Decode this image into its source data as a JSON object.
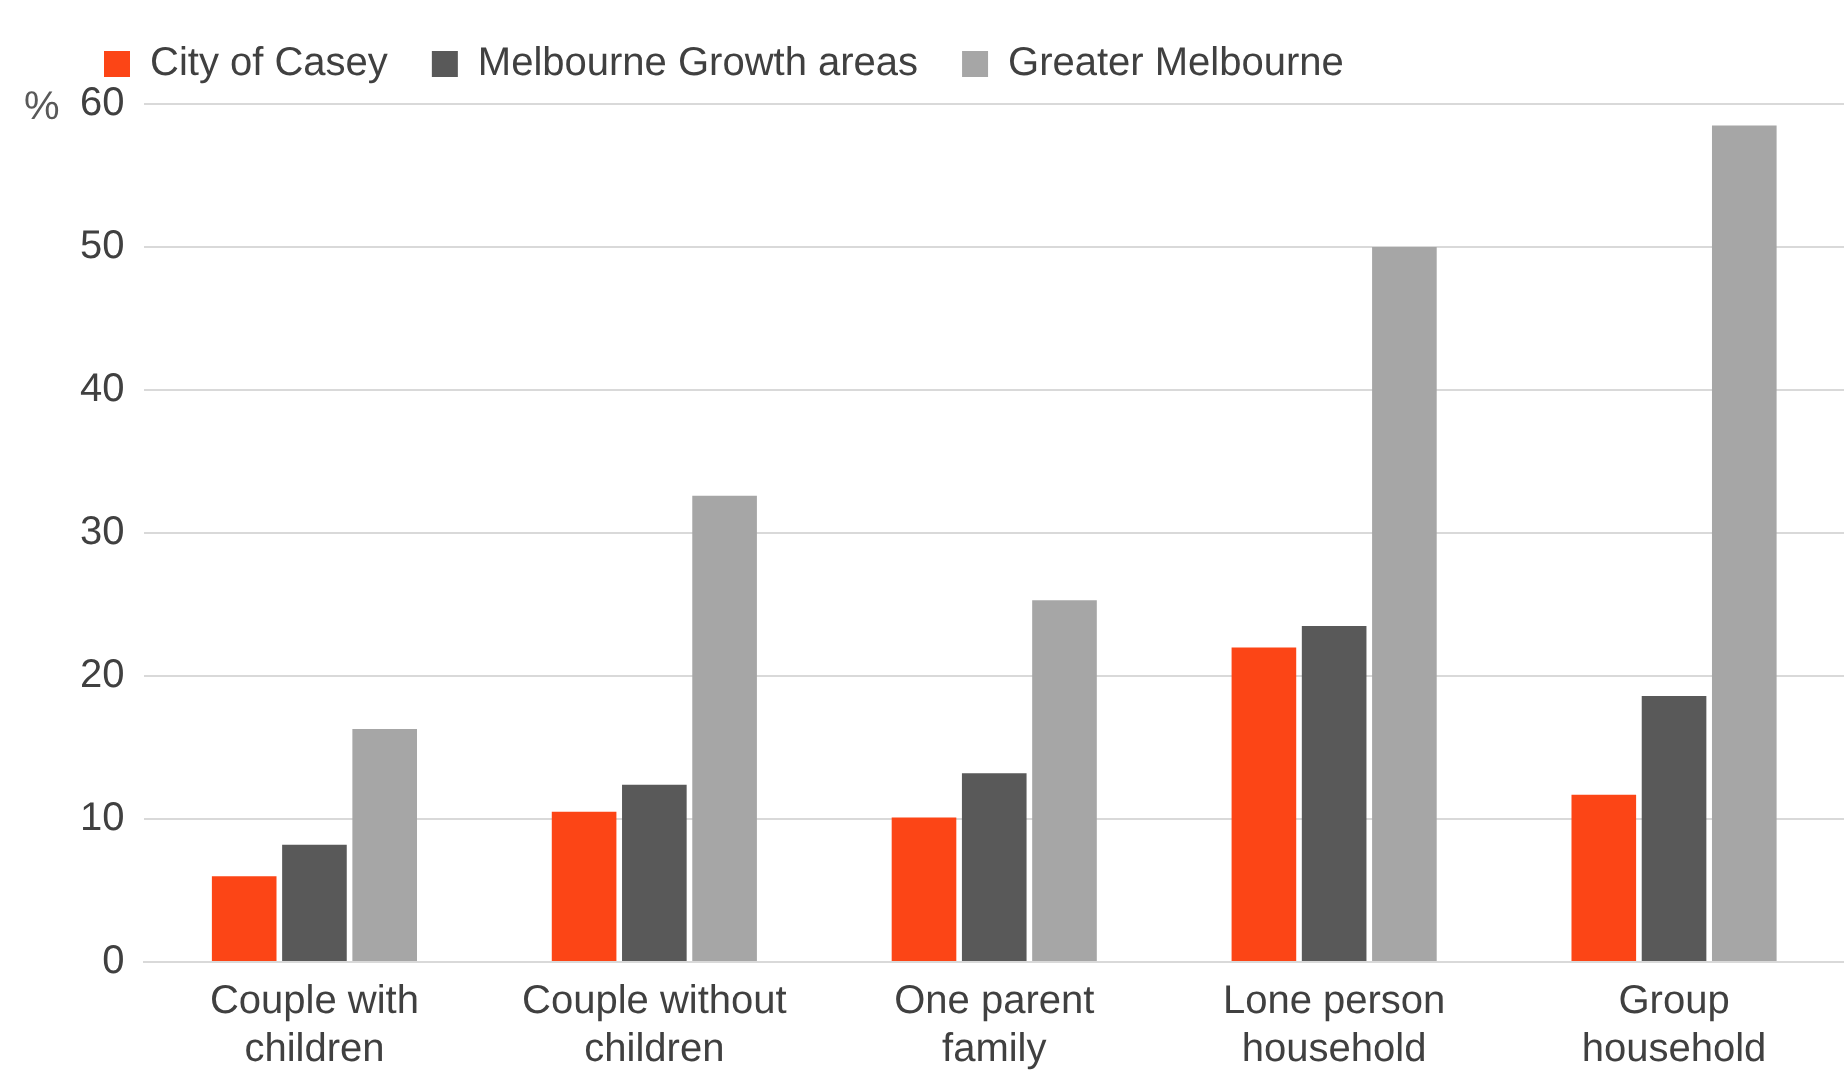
{
  "chart_data": {
    "type": "bar",
    "ylabel": "%",
    "categories": [
      "Couple with children",
      "Couple without children",
      "One parent family",
      "Lone person household",
      "Group household"
    ],
    "series": [
      {
        "name": "City of Casey",
        "color": "#fc4516",
        "values": [
          6.0,
          10.5,
          10.1,
          22.0,
          11.7
        ]
      },
      {
        "name": "Melbourne Growth areas",
        "color": "#595959",
        "values": [
          8.2,
          12.4,
          13.2,
          23.5,
          18.6
        ]
      },
      {
        "name": "Greater Melbourne",
        "color": "#a6a6a6",
        "values": [
          16.3,
          32.6,
          25.3,
          50.0,
          58.5
        ]
      }
    ],
    "ylim": [
      0,
      60
    ],
    "yticks": [
      0,
      10,
      20,
      30,
      40,
      50,
      60
    ],
    "grid": "y",
    "legend": "top"
  }
}
